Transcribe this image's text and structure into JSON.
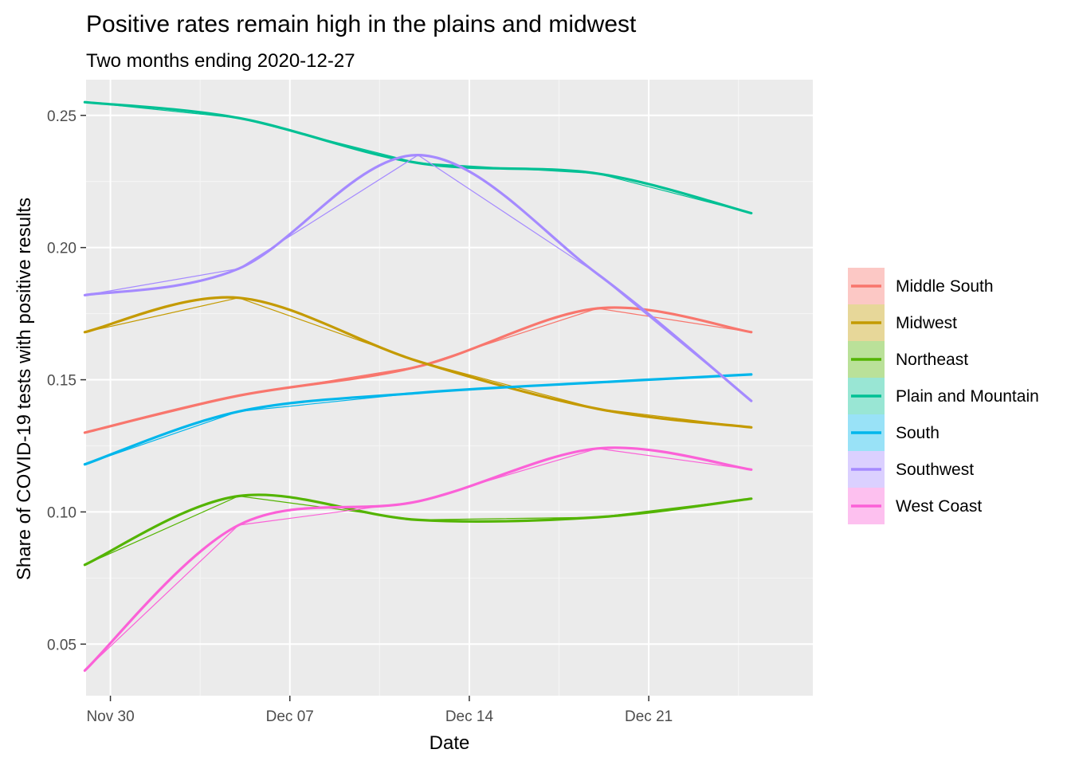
{
  "chart_data": {
    "type": "line",
    "title": "Positive rates remain high in the plains and midwest",
    "subtitle": "Two months ending  2020-12-27",
    "xlabel": "Date",
    "ylabel": "Share of COVID-19 tests with positive results",
    "xlim": [
      -0.95,
      27.4
    ],
    "ylim": [
      0.0305,
      0.2635
    ],
    "x_ticks": [
      {
        "value": 0,
        "label": "Nov 30"
      },
      {
        "value": 7,
        "label": "Dec 07"
      },
      {
        "value": 14,
        "label": "Dec 14"
      },
      {
        "value": 21,
        "label": "Dec 21"
      }
    ],
    "y_ticks": [
      {
        "value": 0.05,
        "label": "0.05"
      },
      {
        "value": 0.1,
        "label": "0.10"
      },
      {
        "value": 0.15,
        "label": "0.15"
      },
      {
        "value": 0.2,
        "label": "0.20"
      },
      {
        "value": 0.25,
        "label": "0.25"
      }
    ],
    "legend_position": "right",
    "series": [
      {
        "name": "Middle South",
        "color": "#F8766D",
        "x": [
          -1,
          5,
          12,
          19,
          25
        ],
        "values": [
          0.13,
          0.144,
          0.155,
          0.177,
          0.168
        ]
      },
      {
        "name": "Midwest",
        "color": "#C49A00",
        "x": [
          -1,
          5,
          12,
          19,
          25
        ],
        "values": [
          0.168,
          0.181,
          0.157,
          0.139,
          0.132
        ]
      },
      {
        "name": "Northeast",
        "color": "#53B400",
        "x": [
          -1,
          5,
          12,
          19,
          25
        ],
        "values": [
          0.08,
          0.106,
          0.097,
          0.098,
          0.105
        ]
      },
      {
        "name": "Plain and Mountain",
        "color": "#00C094",
        "x": [
          -1,
          5,
          12,
          19,
          25
        ],
        "values": [
          0.255,
          0.249,
          0.232,
          0.228,
          0.213
        ]
      },
      {
        "name": "South",
        "color": "#00B6EB",
        "x": [
          -1,
          5,
          12,
          19,
          25
        ],
        "values": [
          0.118,
          0.138,
          0.145,
          0.149,
          0.152
        ]
      },
      {
        "name": "Southwest",
        "color": "#A58AFF",
        "x": [
          -1,
          5,
          12,
          19,
          25
        ],
        "values": [
          0.182,
          0.192,
          0.235,
          0.19,
          0.142
        ]
      },
      {
        "name": "West Coast",
        "color": "#FB61D7",
        "x": [
          -1,
          5,
          12,
          19,
          25
        ],
        "values": [
          0.04,
          0.095,
          0.104,
          0.124,
          0.116
        ]
      }
    ]
  }
}
